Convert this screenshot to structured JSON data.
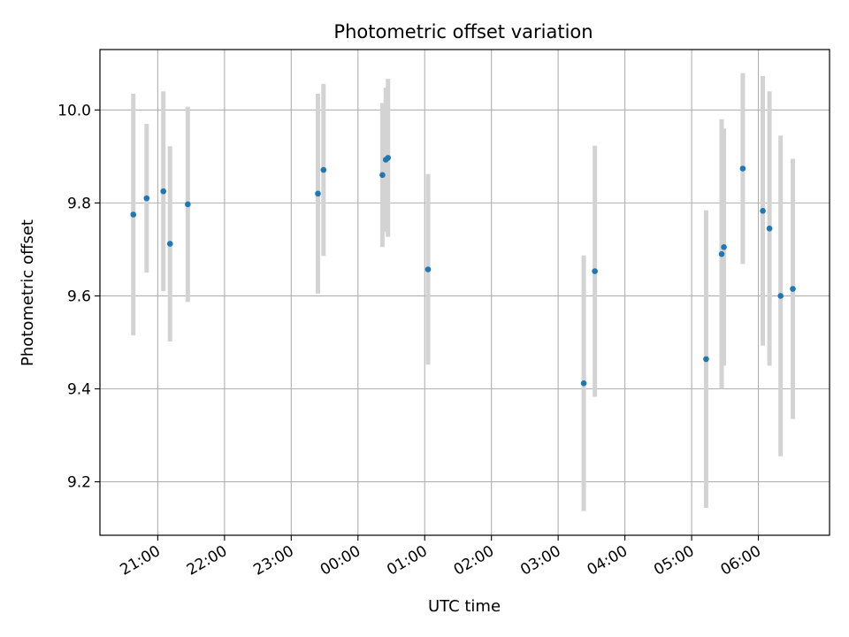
{
  "chart_data": {
    "type": "scatter",
    "title": "Photometric offset variation",
    "xlabel": "UTC time",
    "ylabel": "Photometric offset",
    "x_axis": "time",
    "xlim": [
      "20:08",
      "07:04"
    ],
    "ylim": [
      9.085,
      10.13
    ],
    "x_ticks": [
      "21:00",
      "22:00",
      "23:00",
      "00:00",
      "01:00",
      "02:00",
      "03:00",
      "04:00",
      "05:00",
      "06:00"
    ],
    "y_ticks": [
      "9.2",
      "9.4",
      "9.6",
      "9.8",
      "10.0"
    ],
    "grid": true,
    "colors": {
      "point": "#1f77b4",
      "errorbar": "#d3d3d3",
      "grid": "#b0b0b0"
    },
    "series": [
      {
        "points": [
          {
            "time": "20:38",
            "y": 9.775,
            "yerr": 0.26
          },
          {
            "time": "20:50",
            "y": 9.81,
            "yerr": 0.16
          },
          {
            "time": "21:05",
            "y": 9.825,
            "yerr": 0.215
          },
          {
            "time": "21:11",
            "y": 9.712,
            "yerr": 0.21
          },
          {
            "time": "21:27",
            "y": 9.797,
            "yerr": 0.21
          },
          {
            "time": "23:24",
            "y": 9.82,
            "yerr": 0.215
          },
          {
            "time": "23:29",
            "y": 9.871,
            "yerr": 0.185
          },
          {
            "time": "00:22",
            "y": 9.86,
            "yerr": 0.155
          },
          {
            "time": "00:25",
            "y": 9.893,
            "yerr": 0.155
          },
          {
            "time": "00:27",
            "y": 9.897,
            "yerr": 0.17
          },
          {
            "time": "01:03",
            "y": 9.657,
            "yerr": 0.205
          },
          {
            "time": "03:23",
            "y": 9.412,
            "yerr": 0.275
          },
          {
            "time": "03:33",
            "y": 9.653,
            "yerr": 0.27
          },
          {
            "time": "05:13",
            "y": 9.464,
            "yerr": 0.32
          },
          {
            "time": "05:27",
            "y": 9.69,
            "yerr": 0.29
          },
          {
            "time": "05:29",
            "y": 9.705,
            "yerr": 0.255
          },
          {
            "time": "05:46",
            "y": 9.874,
            "yerr": 0.205
          },
          {
            "time": "06:04",
            "y": 9.783,
            "yerr": 0.29
          },
          {
            "time": "06:10",
            "y": 9.745,
            "yerr": 0.295
          },
          {
            "time": "06:20",
            "y": 9.6,
            "yerr": 0.345
          },
          {
            "time": "06:31",
            "y": 9.615,
            "yerr": 0.28
          }
        ]
      }
    ]
  }
}
